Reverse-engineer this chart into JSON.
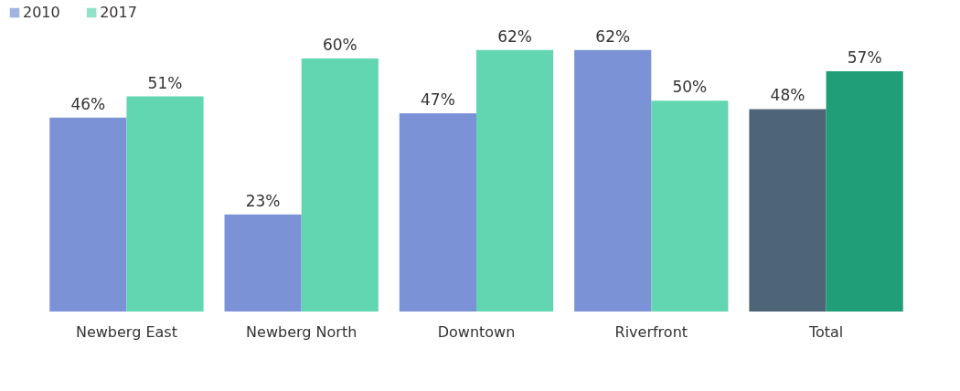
{
  "chart_data": {
    "type": "bar",
    "categories": [
      "Newberg East",
      "Newberg North",
      "Downtown",
      "Riverfront",
      "Total"
    ],
    "series": [
      {
        "name": "2010",
        "color": "#7b93d6",
        "colors": [
          "#7b93d6",
          "#7b93d6",
          "#7b93d6",
          "#7b93d6",
          "#4d6576"
        ],
        "values": [
          46,
          23,
          47,
          62,
          48
        ],
        "value_labels": [
          "46%",
          "23%",
          "47%",
          "62%",
          "48%"
        ]
      },
      {
        "name": "2017",
        "color": "#62d6b0",
        "colors": [
          "#62d6b0",
          "#62d6b0",
          "#62d6b0",
          "#62d6b0",
          "#1f9e78"
        ],
        "values": [
          51,
          60,
          62,
          50,
          57
        ],
        "value_labels": [
          "51%",
          "60%",
          "62%",
          "50%",
          "57%"
        ]
      }
    ],
    "legend": "top left",
    "grid": false
  }
}
